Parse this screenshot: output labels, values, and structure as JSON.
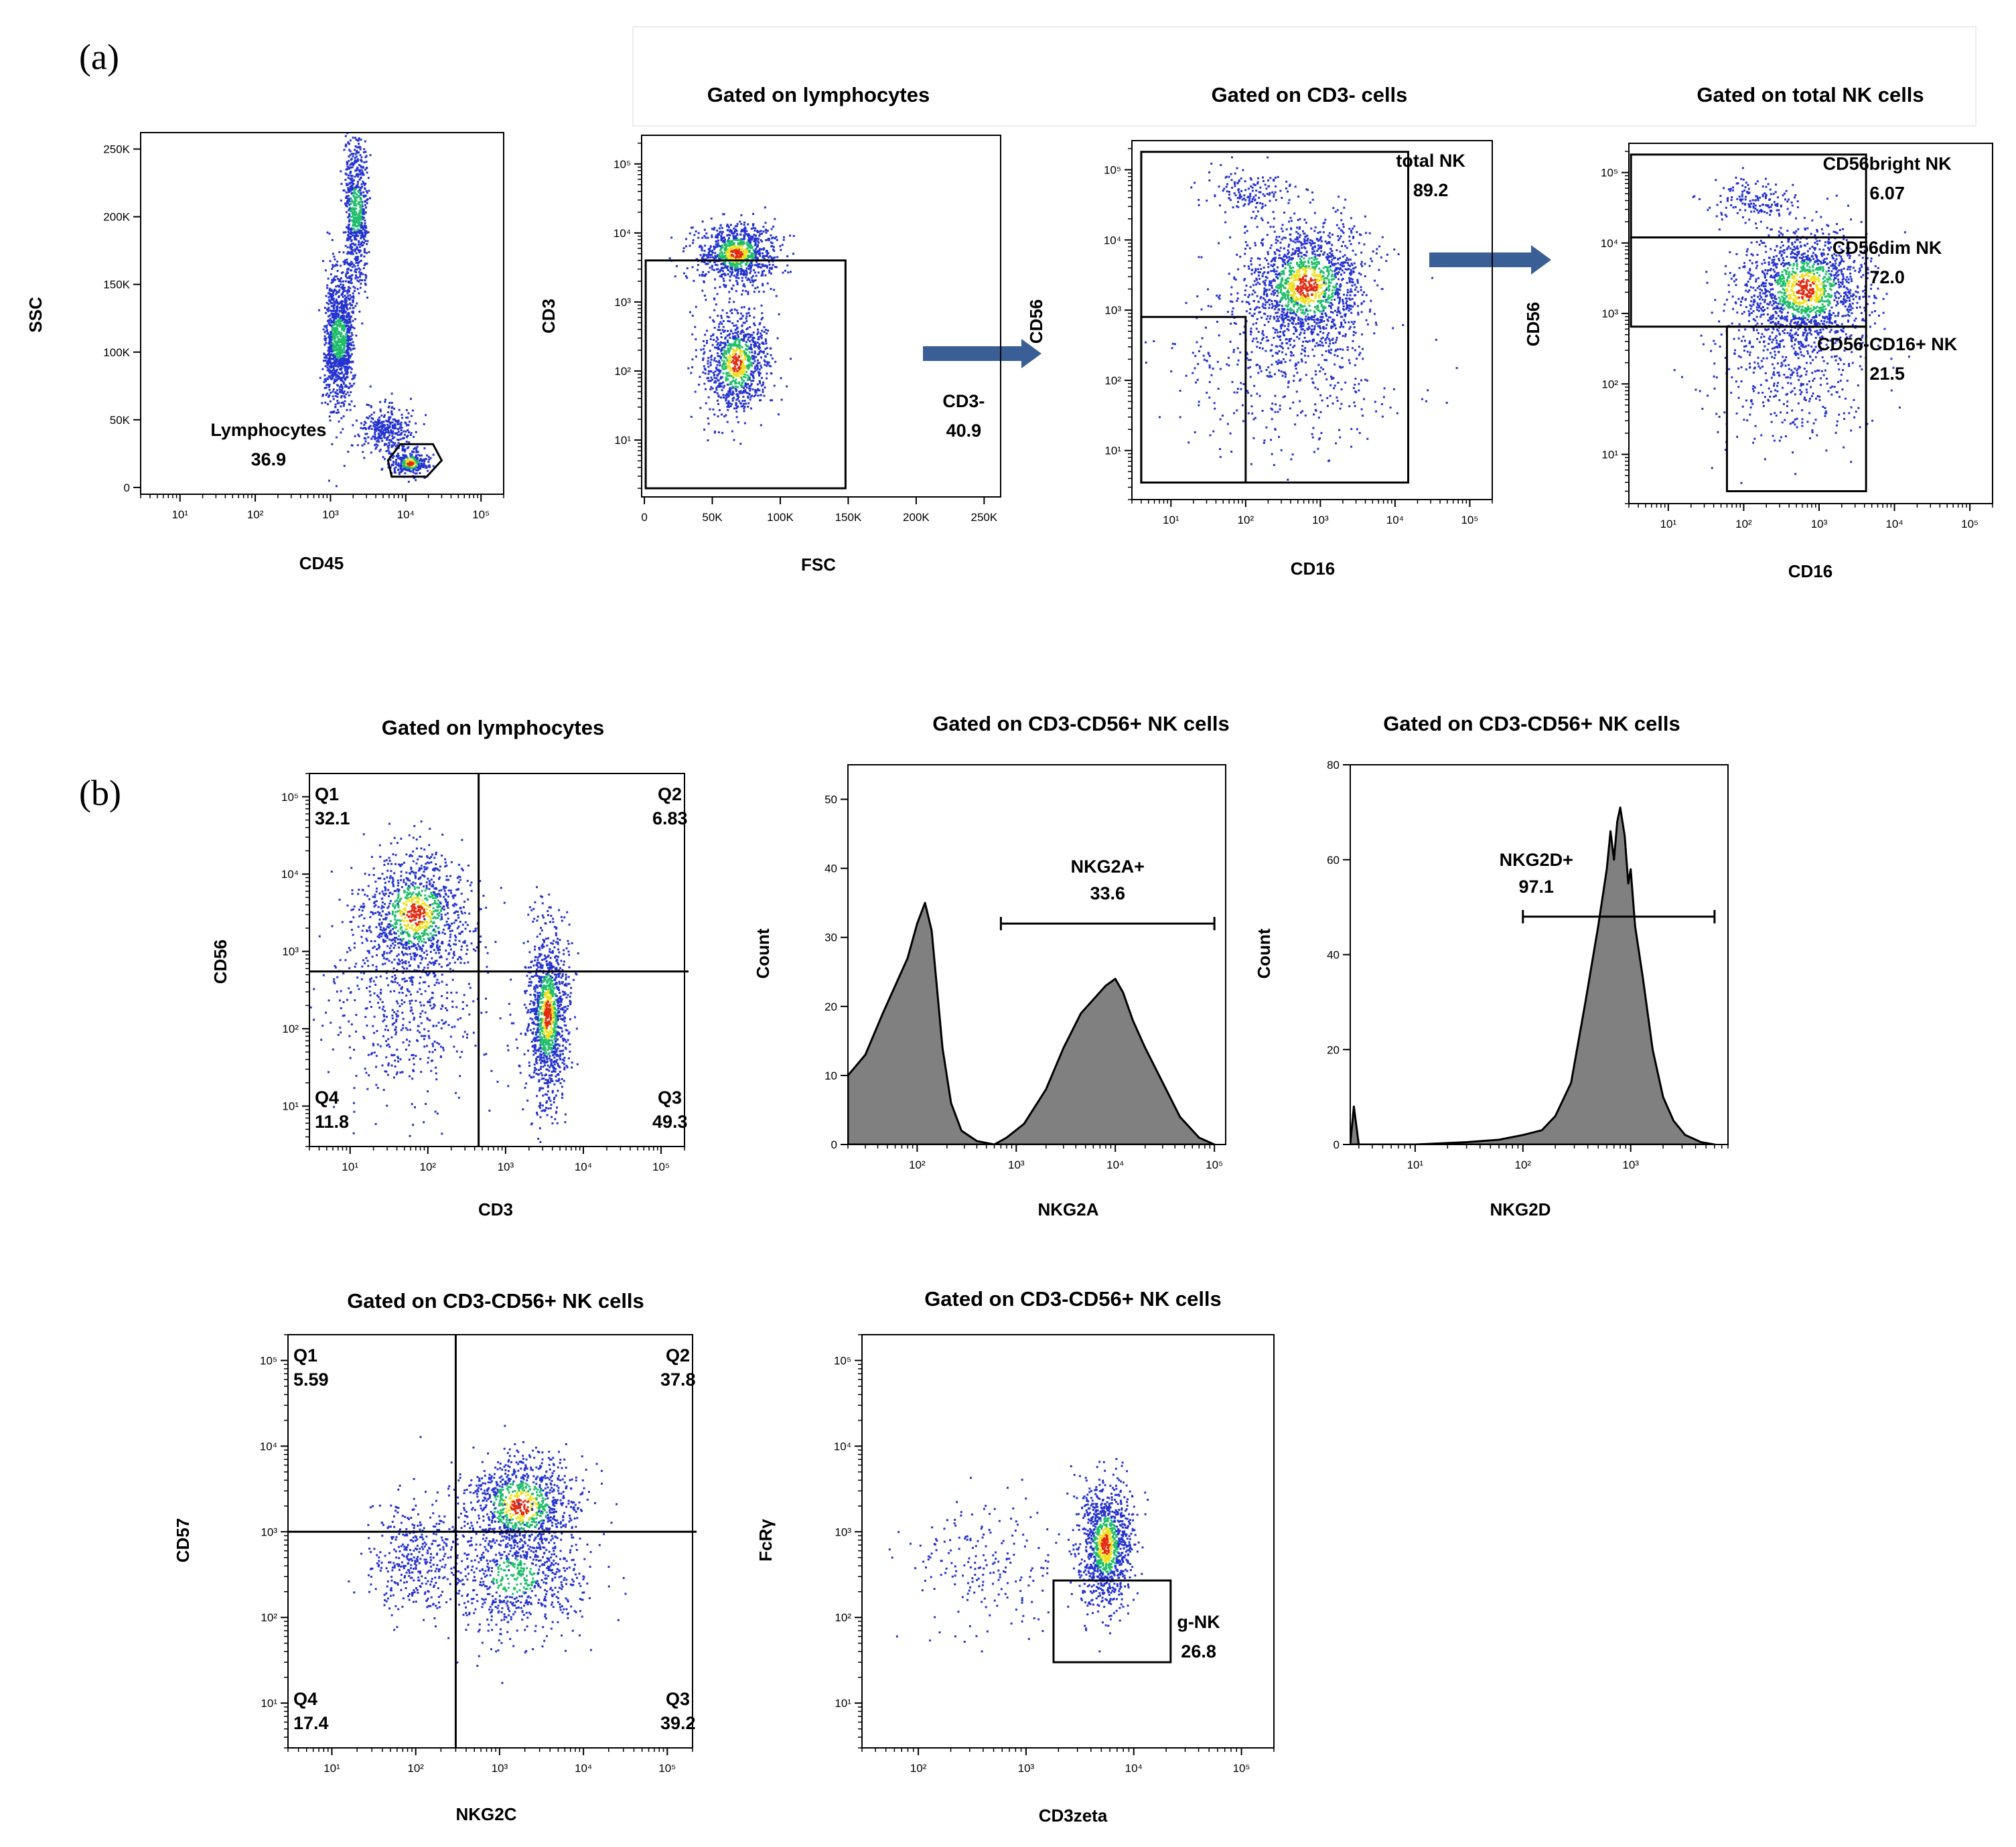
{
  "panel_labels": [
    "(a)",
    "(b)"
  ],
  "colors": {
    "arrow": "#3a5f96",
    "histogram_fill": "#808080",
    "density_low": "#2432d0",
    "density_mid": "#1fbe6a",
    "density_high": "#f0e020",
    "density_peak": "#e22a10"
  },
  "chart_data": [
    {
      "id": "a1",
      "type": "scatter",
      "title": "",
      "xlabel": "CD45",
      "ylabel": "SSC",
      "xscale": "log",
      "xlim": [
        3,
        200000
      ],
      "yscale": "linear",
      "ylim": [
        -5000,
        262144
      ],
      "xticks": [
        {
          "v": 10,
          "label": "10¹"
        },
        {
          "v": 100,
          "label": "10²"
        },
        {
          "v": 1000,
          "label": "10³"
        },
        {
          "v": 10000,
          "label": "10⁴"
        },
        {
          "v": 100000,
          "label": "10⁵"
        }
      ],
      "yticks": [
        {
          "v": 0,
          "label": "0"
        },
        {
          "v": 50000,
          "label": "50K"
        },
        {
          "v": 100000,
          "label": "100K"
        },
        {
          "v": 150000,
          "label": "150K"
        },
        {
          "v": 200000,
          "label": "200K"
        },
        {
          "v": 250000,
          "label": "250K"
        }
      ],
      "populations": [
        {
          "x": 1300,
          "y": 110000,
          "sx": 0.17,
          "sy": 26000,
          "n": 1100,
          "shape": "box"
        },
        {
          "x": 2200,
          "y": 205000,
          "sx": 0.14,
          "sy": 28000,
          "n": 650,
          "shape": "box"
        },
        {
          "x": 5500,
          "y": 42000,
          "sx": 0.18,
          "sy": 9000,
          "n": 320
        },
        {
          "x": 11500,
          "y": 18000,
          "sx": 0.12,
          "sy": 5000,
          "n": 300,
          "dense": true
        }
      ],
      "gates": [
        {
          "shape": "polygon",
          "points": [
            [
              6500,
              8000
            ],
            [
              19000,
              8000
            ],
            [
              30000,
              20000
            ],
            [
              23000,
              32000
            ],
            [
              8500,
              32000
            ],
            [
              5800,
              20000
            ]
          ],
          "name": "Lymphocytes",
          "value": "36.9",
          "label_at": [
            150,
            38000
          ]
        }
      ]
    },
    {
      "id": "a2",
      "type": "scatter",
      "title": "Gated on lymphocytes",
      "xlabel": "FSC",
      "ylabel": "CD3",
      "xscale": "linear",
      "xlim": [
        -2000,
        262144
      ],
      "yscale": "log",
      "ylim": [
        1.5,
        260000
      ],
      "xticks": [
        {
          "v": 0,
          "label": "0"
        },
        {
          "v": 50000,
          "label": "50K"
        },
        {
          "v": 100000,
          "label": "100K"
        },
        {
          "v": 150000,
          "label": "150K"
        },
        {
          "v": 200000,
          "label": "200K"
        },
        {
          "v": 250000,
          "label": "250K"
        }
      ],
      "yticks": [
        {
          "v": 10,
          "label": "10¹"
        },
        {
          "v": 100,
          "label": "10²"
        },
        {
          "v": 1000,
          "label": "10³"
        },
        {
          "v": 10000,
          "label": "10⁴"
        },
        {
          "v": 100000,
          "label": "10⁵"
        }
      ],
      "populations": [
        {
          "x": 68000,
          "y": 5000,
          "sx": 14000,
          "sy": 0.22,
          "n": 900,
          "dense": true
        },
        {
          "x": 68000,
          "y": 130,
          "sx": 12000,
          "sy": 0.38,
          "n": 900,
          "dense": true
        }
      ],
      "gates": [
        {
          "shape": "rect",
          "x0": 1000,
          "x1": 148000,
          "y0": 2,
          "y1": 4000,
          "name": "CD3-",
          "value": "40.9",
          "label_at": [
            235000,
            30
          ]
        }
      ]
    },
    {
      "id": "a3",
      "type": "scatter",
      "title": "Gated on CD3- cells",
      "xlabel": "CD16",
      "ylabel": "CD56",
      "xscale": "log",
      "xlim": [
        3,
        200000
      ],
      "yscale": "log",
      "ylim": [
        2,
        260000
      ],
      "xticks": [
        {
          "v": 10,
          "label": "10¹"
        },
        {
          "v": 100,
          "label": "10²"
        },
        {
          "v": 1000,
          "label": "10³"
        },
        {
          "v": 10000,
          "label": "10⁴"
        },
        {
          "v": 100000,
          "label": "10⁵"
        }
      ],
      "yticks": [
        {
          "v": 10,
          "label": "10¹"
        },
        {
          "v": 100,
          "label": "10²"
        },
        {
          "v": 1000,
          "label": "10³"
        },
        {
          "v": 10000,
          "label": "10⁴"
        },
        {
          "v": 100000,
          "label": "10⁵"
        }
      ],
      "populations": [
        {
          "x": 650,
          "y": 2200,
          "sx": 0.42,
          "sy": 0.45,
          "n": 1500,
          "dense": true
        },
        {
          "x": 110,
          "y": 50000,
          "sx": 0.3,
          "sy": 0.15,
          "n": 150
        },
        {
          "x": 300,
          "y": 150,
          "sx": 0.7,
          "sy": 0.6,
          "n": 400
        }
      ],
      "gates": [
        {
          "shape": "rect",
          "x0": 4,
          "x1": 15000,
          "y0": 3.5,
          "y1": 180000,
          "name": "total NK",
          "value": "89.2",
          "label_at": [
            30000,
            110000
          ]
        },
        {
          "shape": "rect",
          "x0": 4,
          "x1": 100,
          "y0": 3.5,
          "y1": 800
        }
      ]
    },
    {
      "id": "a4",
      "type": "scatter",
      "title": "Gated on total NK cells",
      "xlabel": "CD16",
      "ylabel": "CD56",
      "xscale": "log",
      "xlim": [
        3,
        200000
      ],
      "yscale": "log",
      "ylim": [
        2,
        260000
      ],
      "xticks": [
        {
          "v": 10,
          "label": "10¹"
        },
        {
          "v": 100,
          "label": "10²"
        },
        {
          "v": 1000,
          "label": "10³"
        },
        {
          "v": 10000,
          "label": "10⁴"
        },
        {
          "v": 100000,
          "label": "10⁵"
        }
      ],
      "yticks": [
        {
          "v": 10,
          "label": "10¹"
        },
        {
          "v": 100,
          "label": "10²"
        },
        {
          "v": 1000,
          "label": "10³"
        },
        {
          "v": 10000,
          "label": "10⁴"
        },
        {
          "v": 100000,
          "label": "10⁵"
        }
      ],
      "populations": [
        {
          "x": 650,
          "y": 2200,
          "sx": 0.42,
          "sy": 0.42,
          "n": 1500,
          "dense": true
        },
        {
          "x": 120,
          "y": 40000,
          "sx": 0.3,
          "sy": 0.15,
          "n": 150
        },
        {
          "x": 400,
          "y": 150,
          "sx": 0.5,
          "sy": 0.5,
          "n": 400
        }
      ],
      "gates": [
        {
          "shape": "rect",
          "x0": 3.2,
          "x1": 4200,
          "y0": 12000,
          "y1": 180000,
          "name": "CD56bright NK",
          "value": "6.07",
          "label_at": [
            8000,
            110000
          ]
        },
        {
          "shape": "rect",
          "x0": 3.2,
          "x1": 4200,
          "y0": 650,
          "y1": 12000,
          "name": "CD56dim NK",
          "value": "72.0",
          "label_at": [
            8000,
            7000
          ]
        },
        {
          "shape": "rect",
          "x0": 60,
          "x1": 4200,
          "y0": 3,
          "y1": 650,
          "name": "CD56-CD16+ NK",
          "value": "21.5",
          "label_at": [
            8000,
            300
          ]
        }
      ]
    },
    {
      "id": "b1",
      "type": "scatter",
      "title": "Gated on lymphocytes",
      "xlabel": "CD3",
      "ylabel": "CD56",
      "xscale": "log",
      "xlim": [
        3,
        200000
      ],
      "yscale": "log",
      "ylim": [
        3,
        200000
      ],
      "xticks": [
        {
          "v": 10,
          "label": "10¹"
        },
        {
          "v": 100,
          "label": "10²"
        },
        {
          "v": 1000,
          "label": "10³"
        },
        {
          "v": 10000,
          "label": "10⁴"
        },
        {
          "v": 100000,
          "label": "10⁵"
        }
      ],
      "yticks": [
        {
          "v": 10,
          "label": "10¹"
        },
        {
          "v": 100,
          "label": "10²"
        },
        {
          "v": 1000,
          "label": "10³"
        },
        {
          "v": 10000,
          "label": "10⁴"
        },
        {
          "v": 100000,
          "label": "10⁵"
        }
      ],
      "populations": [
        {
          "x": 70,
          "y": 3000,
          "sx": 0.35,
          "sy": 0.4,
          "n": 1100,
          "dense": true
        },
        {
          "x": 3500,
          "y": 150,
          "sx": 0.13,
          "sy": 0.55,
          "n": 1200,
          "dense": true
        },
        {
          "x": 50,
          "y": 150,
          "sx": 0.5,
          "sy": 0.6,
          "n": 450
        }
      ],
      "gates": [
        {
          "shape": "quadrant",
          "xcut": 450,
          "ycut": 550,
          "labels": [
            {
              "name": "Q1",
              "value": "32.1",
              "corner": "tl"
            },
            {
              "name": "Q2",
              "value": "6.83",
              "corner": "tr"
            },
            {
              "name": "Q3",
              "value": "49.3",
              "corner": "br"
            },
            {
              "name": "Q4",
              "value": "11.8",
              "corner": "bl"
            }
          ]
        }
      ]
    },
    {
      "id": "b2",
      "type": "area",
      "title": "Gated on CD3-CD56+ NK cells",
      "xlabel": "NKG2A",
      "ylabel": "Count",
      "xscale": "log",
      "xlim": [
        20,
        130000
      ],
      "yscale": "linear",
      "ylim": [
        0,
        55
      ],
      "xticks": [
        {
          "v": 100,
          "label": "10²"
        },
        {
          "v": 1000,
          "label": "10³"
        },
        {
          "v": 10000,
          "label": "10⁴"
        },
        {
          "v": 100000,
          "label": "10⁵"
        }
      ],
      "yticks": [
        {
          "v": 0,
          "label": "0"
        },
        {
          "v": 10,
          "label": "10"
        },
        {
          "v": 20,
          "label": "20"
        },
        {
          "v": 30,
          "label": "30"
        },
        {
          "v": 40,
          "label": "40"
        },
        {
          "v": 50,
          "label": "50"
        }
      ],
      "x": [
        20,
        30,
        45,
        60,
        80,
        100,
        120,
        140,
        160,
        180,
        220,
        280,
        400,
        600,
        800,
        1200,
        2000,
        3000,
        4500,
        6000,
        8000,
        10000,
        12000,
        15000,
        20000,
        30000,
        45000,
        70000,
        100000
      ],
      "y": [
        10,
        13,
        19,
        23,
        27,
        32,
        35,
        31,
        22,
        14,
        6,
        2,
        0.5,
        0,
        1,
        3,
        8,
        14,
        19,
        21,
        23,
        24,
        22,
        18,
        14,
        9,
        4,
        1,
        0
      ],
      "marker": {
        "name": "NKG2A+",
        "value": "33.6",
        "x0": 700,
        "x1": 100000,
        "level": 32
      }
    },
    {
      "id": "b3",
      "type": "area",
      "title": "Gated on CD3-CD56+ NK cells",
      "xlabel": "NKG2D",
      "ylabel": "Count",
      "xscale": "log",
      "xlim": [
        2.5,
        8000
      ],
      "yscale": "linear",
      "ylim": [
        0,
        80
      ],
      "xticks": [
        {
          "v": 10,
          "label": "10¹"
        },
        {
          "v": 100,
          "label": "10²"
        },
        {
          "v": 1000,
          "label": "10³"
        }
      ],
      "yticks": [
        {
          "v": 0,
          "label": "0"
        },
        {
          "v": 20,
          "label": "20"
        },
        {
          "v": 40,
          "label": "40"
        },
        {
          "v": 60,
          "label": "60"
        },
        {
          "v": 80,
          "label": "80"
        }
      ],
      "x": [
        2.5,
        2.7,
        3,
        5,
        10,
        30,
        60,
        100,
        150,
        200,
        280,
        380,
        500,
        600,
        650,
        700,
        750,
        800,
        880,
        950,
        1000,
        1100,
        1300,
        1600,
        2000,
        2500,
        3200,
        4500,
        6000
      ],
      "y": [
        0,
        8,
        0,
        0,
        0,
        0.5,
        1,
        2,
        3,
        6,
        13,
        30,
        46,
        58,
        66,
        60,
        68,
        71,
        65,
        55,
        58,
        46,
        35,
        20,
        10,
        5,
        2,
        0.5,
        0
      ],
      "marker": {
        "name": "NKG2D+",
        "value": "97.1",
        "x0": 100,
        "x1": 6000,
        "level": 48
      }
    },
    {
      "id": "b4",
      "type": "scatter",
      "title": "Gated on CD3-CD56+ NK cells",
      "xlabel": "NKG2C",
      "ylabel": "CD57",
      "xscale": "log",
      "xlim": [
        3,
        200000
      ],
      "yscale": "log",
      "ylim": [
        3,
        200000
      ],
      "xticks": [
        {
          "v": 10,
          "label": "10¹"
        },
        {
          "v": 100,
          "label": "10²"
        },
        {
          "v": 1000,
          "label": "10³"
        },
        {
          "v": 10000,
          "label": "10⁴"
        },
        {
          "v": 100000,
          "label": "10⁵"
        }
      ],
      "yticks": [
        {
          "v": 10,
          "label": "10¹"
        },
        {
          "v": 100,
          "label": "10²"
        },
        {
          "v": 1000,
          "label": "10³"
        },
        {
          "v": 10000,
          "label": "10⁴"
        },
        {
          "v": 100000,
          "label": "10⁵"
        }
      ],
      "populations": [
        {
          "x": 1800,
          "y": 2000,
          "sx": 0.35,
          "sy": 0.3,
          "n": 1000,
          "dense": true
        },
        {
          "x": 1500,
          "y": 300,
          "sx": 0.45,
          "sy": 0.35,
          "n": 700
        },
        {
          "x": 90,
          "y": 500,
          "sx": 0.25,
          "sy": 0.35,
          "n": 350
        }
      ],
      "gates": [
        {
          "shape": "quadrant",
          "xcut": 300,
          "ycut": 1000,
          "labels": [
            {
              "name": "Q1",
              "value": "5.59",
              "corner": "tl"
            },
            {
              "name": "Q2",
              "value": "37.8",
              "corner": "tr"
            },
            {
              "name": "Q3",
              "value": "39.2",
              "corner": "br"
            },
            {
              "name": "Q4",
              "value": "17.4",
              "corner": "bl"
            }
          ]
        }
      ]
    },
    {
      "id": "b5",
      "type": "scatter",
      "title": "Gated on CD3-CD56+ NK cells",
      "xlabel": "CD3zeta",
      "ylabel": "FcRγ",
      "xscale": "log",
      "xlim": [
        30,
        200000
      ],
      "yscale": "log",
      "ylim": [
        3,
        200000
      ],
      "xticks": [
        {
          "v": 100,
          "label": "10²"
        },
        {
          "v": 1000,
          "label": "10³"
        },
        {
          "v": 10000,
          "label": "10⁴"
        },
        {
          "v": 100000,
          "label": "10⁵"
        }
      ],
      "yticks": [
        {
          "v": 10,
          "label": "10¹"
        },
        {
          "v": 100,
          "label": "10²"
        },
        {
          "v": 1000,
          "label": "10³"
        },
        {
          "v": 10000,
          "label": "10⁴"
        },
        {
          "v": 100000,
          "label": "10⁵"
        }
      ],
      "populations": [
        {
          "x": 5500,
          "y": 700,
          "sx": 0.12,
          "sy": 0.35,
          "n": 1100,
          "dense": true
        },
        {
          "x": 450,
          "y": 400,
          "sx": 0.35,
          "sy": 0.4,
          "n": 200
        }
      ],
      "gates": [
        {
          "shape": "rect",
          "x0": 1800,
          "x1": 22000,
          "y0": 30,
          "y1": 270,
          "name": "g-NK",
          "value": "26.8",
          "label_at": [
            40000,
            75
          ]
        }
      ]
    }
  ]
}
